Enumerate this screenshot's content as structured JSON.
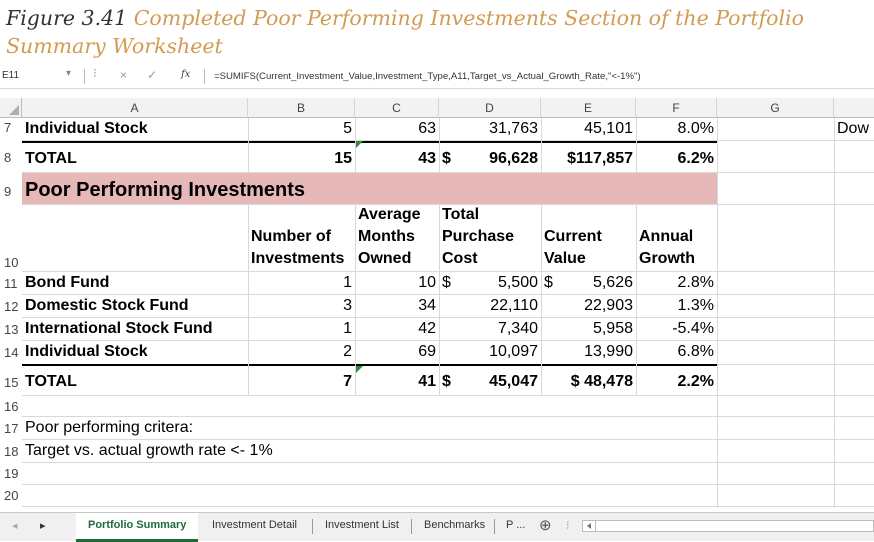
{
  "caption": {
    "prefix": "Figure 3.41",
    "title": "Completed Poor Performing Investments Section of the Portfolio Summary Worksheet"
  },
  "formula_bar": {
    "name_box": "E11",
    "cancel_icon": "×",
    "enter_icon": "✓",
    "fx_label": "fx",
    "formula": "=SUMIFS(Current_Investment_Value,Investment_Type,A11,Target_vs_Actual_Growth_Rate,\"<-1%\")"
  },
  "columns": [
    "A",
    "B",
    "C",
    "D",
    "E",
    "F",
    "G"
  ],
  "row7": {
    "num": "7",
    "a": "Individual Stock",
    "b": "5",
    "c": "63",
    "d": "31,763",
    "e": "45,101",
    "f": "8.0%",
    "h": "Dow"
  },
  "row8": {
    "num": "8",
    "a": "TOTAL",
    "b": "15",
    "c": "43",
    "d_cur": "$",
    "d": "96,628",
    "e": "$117,857",
    "f": "6.2%"
  },
  "row9": {
    "num": "9",
    "a": "Poor Performing Investments"
  },
  "header": {
    "num": "10",
    "b1": "Number of",
    "b2": "Investments",
    "c1": "Average",
    "c2": "Months",
    "c3": "Owned",
    "d1": "Total",
    "d2": "Purchase",
    "d3": "Cost",
    "e1": "Current",
    "e2": "Value",
    "f1": "Annual",
    "f2": "Growth"
  },
  "rows": [
    {
      "num": "11",
      "a": "Bond Fund",
      "b": "1",
      "c": "10",
      "d_cur": "$",
      "d": "5,500",
      "e_cur": "$",
      "e": "5,626",
      "f": "2.8%"
    },
    {
      "num": "12",
      "a": "Domestic Stock Fund",
      "b": "3",
      "c": "34",
      "d": "22,110",
      "e": "22,903",
      "f": "1.3%"
    },
    {
      "num": "13",
      "a": "International Stock Fund",
      "b": "1",
      "c": "42",
      "d": "7,340",
      "e": "5,958",
      "f": "-5.4%"
    },
    {
      "num": "14",
      "a": "Individual Stock",
      "b": "2",
      "c": "69",
      "d": "10,097",
      "e": "13,990",
      "f": "6.8%"
    }
  ],
  "total": {
    "num": "15",
    "a": "TOTAL",
    "b": "7",
    "c": "41",
    "d_cur": "$",
    "d": "45,047",
    "e": "$ 48,478",
    "f": "2.2%"
  },
  "notes": {
    "r16": "16",
    "r17": "17",
    "t17": "Poor performing critera:",
    "r18": "18",
    "t18": "Target vs. actual growth rate <- 1%",
    "r19": "19",
    "r20": "20"
  },
  "sheet_tabs": {
    "prev": "◂",
    "next": "▸",
    "tabs": [
      "Portfolio Summary",
      "Investment Detail",
      "Investment List",
      "Benchmarks",
      "P ..."
    ],
    "add": "⊕",
    "more": "⁝"
  },
  "colors": {
    "section_fill": "#e6b8b7",
    "accent": "#d29b52",
    "active_tab": "#1e6b3a"
  }
}
